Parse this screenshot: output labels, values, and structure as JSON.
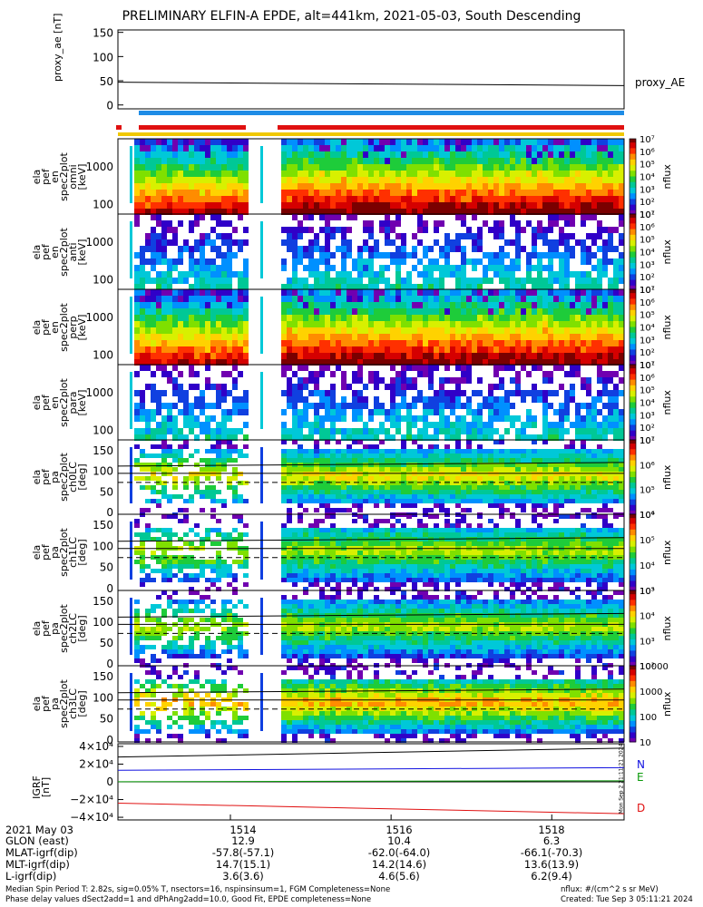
{
  "title": "PRELIMINARY ELFIN-A EPDE, alt=441km, 2021-05-03, South Descending",
  "chart_data": [
    {
      "type": "line",
      "panel": "proxy_ae",
      "ylabel": "proxy_ae [nT]",
      "ylim": [
        -8,
        155
      ],
      "yticks": [
        "150",
        "100",
        "50",
        "0"
      ],
      "series": [
        {
          "name": "proxy_AE",
          "color": "#000000",
          "x": [
            1512.6,
            1518.9
          ],
          "values": [
            47,
            40
          ]
        }
      ]
    },
    {
      "type": "heatmap",
      "panel": "energy_spectra",
      "panels": [
        {
          "ylabel": [
            "ela",
            "pef",
            "en",
            "spec2plot",
            "omni",
            "[keV]"
          ],
          "yticks": [
            "1000",
            "100"
          ],
          "zticks": [
            "10⁷",
            "10⁶",
            "10⁵",
            "10⁴",
            "10³",
            "10²",
            "10¹"
          ]
        },
        {
          "ylabel": [
            "ela",
            "pef",
            "en",
            "spec2plot",
            "anti",
            "[keV]"
          ],
          "yticks": [
            "1000",
            "100"
          ],
          "zticks": [
            "10⁷",
            "10⁶",
            "10⁵",
            "10⁴",
            "10³",
            "10²",
            "10¹"
          ]
        },
        {
          "ylabel": [
            "ela",
            "pef",
            "en",
            "spec2plot",
            "perp",
            "[keV]"
          ],
          "yticks": [
            "1000",
            "100"
          ],
          "zticks": [
            "10⁷",
            "10⁶",
            "10⁵",
            "10⁴",
            "10³",
            "10²",
            "10¹"
          ]
        },
        {
          "ylabel": [
            "ela",
            "pef",
            "en",
            "spec2plot",
            "para",
            "[keV]"
          ],
          "yticks": [
            "1000",
            "100"
          ],
          "zticks": [
            "10⁷",
            "10⁶",
            "10⁵",
            "10⁴",
            "10³",
            "10²",
            "10¹"
          ]
        }
      ],
      "zlabel": "nflux"
    },
    {
      "type": "heatmap",
      "panel": "pitch_angle_spectra",
      "panels": [
        {
          "ylabel": [
            "ela",
            "pef",
            "pa",
            "spec2plot",
            "ch0LC",
            "[deg]"
          ],
          "yticks": [
            "150",
            "100",
            "50",
            "0"
          ],
          "zticks": [
            "10⁷",
            "10⁶",
            "10⁵",
            "10⁴"
          ]
        },
        {
          "ylabel": [
            "ela",
            "pef",
            "pa",
            "spec2plot",
            "ch1LC",
            "[deg]"
          ],
          "yticks": [
            "150",
            "100",
            "50",
            "0"
          ],
          "zticks": [
            "10⁶",
            "10⁵",
            "10⁴",
            "10³"
          ]
        },
        {
          "ylabel": [
            "ela",
            "pef",
            "pa",
            "spec2plot",
            "ch2LC",
            "[deg]"
          ],
          "yticks": [
            "150",
            "100",
            "50",
            "0"
          ],
          "zticks": [
            "10⁵",
            "10⁴",
            "10³",
            "10²"
          ]
        },
        {
          "ylabel": [
            "ela",
            "pef",
            "pa",
            "spec2plot",
            "ch3LC",
            "[deg]"
          ],
          "yticks": [
            "150",
            "100",
            "50",
            "0"
          ],
          "zticks": [
            "10000",
            "1000",
            "100",
            "10"
          ]
        }
      ],
      "zlabel": "nflux"
    },
    {
      "type": "line",
      "panel": "igrf",
      "ylabel": "IGRF [nT]",
      "ylim": [
        -43000,
        43000
      ],
      "yticks": [
        "4×10⁴",
        "2×10⁴",
        "0",
        "−2×10⁴",
        "−4×10⁴"
      ],
      "series": [
        {
          "name": "N",
          "color": "#1010e0",
          "x": [
            1512.6,
            1518.9
          ],
          "values": [
            13000,
            16000
          ]
        },
        {
          "name": "E",
          "color": "#0a9a0a",
          "x": [
            1512.6,
            1518.9
          ],
          "values": [
            100,
            1200
          ]
        },
        {
          "name": "D",
          "color": "#e01010",
          "x": [
            1512.6,
            1518.9
          ],
          "values": [
            -24000,
            -36000
          ]
        }
      ]
    }
  ],
  "legend_proxy": "proxy_AE",
  "legend_N": "N",
  "legend_E": "E",
  "legend_D": "D",
  "colorbar_label": "nflux",
  "colorbar_colors": [
    "#7a0000",
    "#d50000",
    "#ff3000",
    "#ff8c00",
    "#ffd200",
    "#d8f000",
    "#7fe000",
    "#1ecc3a",
    "#00c896",
    "#00c8d8",
    "#0090ff",
    "#1040e0",
    "#3000c8",
    "#7000b0",
    "#ffffff"
  ],
  "pa_dashes": "--",
  "x_axis": {
    "date_label": "2021 May 03",
    "ticks": [
      "1514",
      "1516",
      "1518"
    ],
    "rows": [
      {
        "label": "GLON (east)",
        "values": [
          "12.9",
          "10.4",
          "6.3"
        ]
      },
      {
        "label": "MLAT-igrf(dip)",
        "values": [
          "-57.8(-57.1)",
          "-62.0(-64.0)",
          "-66.1(-70.3)"
        ]
      },
      {
        "label": "MLT-igrf(dip)",
        "values": [
          "14.7(15.1)",
          "14.2(14.6)",
          "13.6(13.9)"
        ]
      },
      {
        "label": "L-igrf(dip)",
        "values": [
          "3.6(3.6)",
          "4.6(5.6)",
          "6.2(9.4)"
        ]
      }
    ]
  },
  "footer": {
    "line1": "Median Spin Period T: 2.82s, sig=0.05% T, nsectors=16, nspinsinsum=1, FGM Completeness=None",
    "line2": "Phase delay values dSect2add=1 and dPhAng2add=10.0, Good Fit, EPDE completeness=None",
    "units": "nflux: #/(cm^2 s sr MeV)",
    "created": "Created: Tue Sep  3 05:11:21 2024",
    "side_stamp": "Mon Sep  2 21:11:21 2024"
  }
}
